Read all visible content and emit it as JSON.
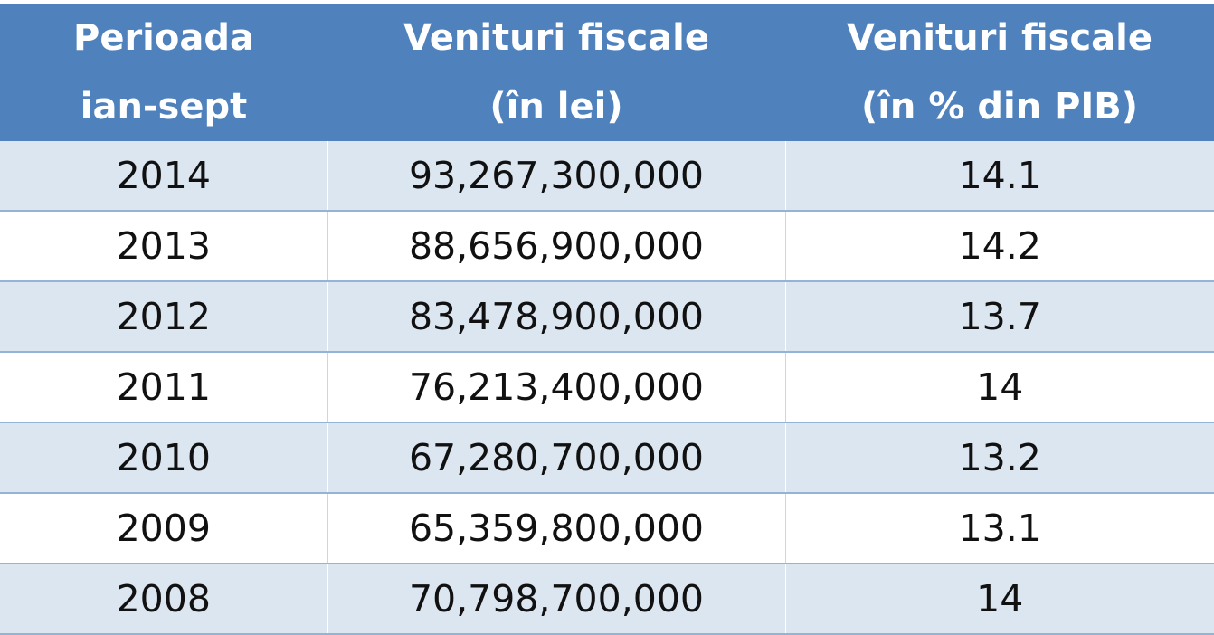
{
  "table": {
    "header": [
      [
        "Perioada",
        "ian-sept"
      ],
      [
        "Venituri fiscale",
        "(în lei)"
      ],
      [
        "Venituri fiscale",
        "(în % din PIB)"
      ]
    ],
    "rows": [
      [
        "2014",
        "93,267,300,000",
        "14.1"
      ],
      [
        "2013",
        "88,656,900,000",
        "14.2"
      ],
      [
        "2012",
        "83,478,900,000",
        "13.7"
      ],
      [
        "2011",
        "76,213,400,000",
        "14"
      ],
      [
        "2010",
        "67,280,700,000",
        "13.2"
      ],
      [
        "2009",
        "65,359,800,000",
        "13.1"
      ],
      [
        "2008",
        "70,798,700,000",
        "14"
      ]
    ]
  }
}
